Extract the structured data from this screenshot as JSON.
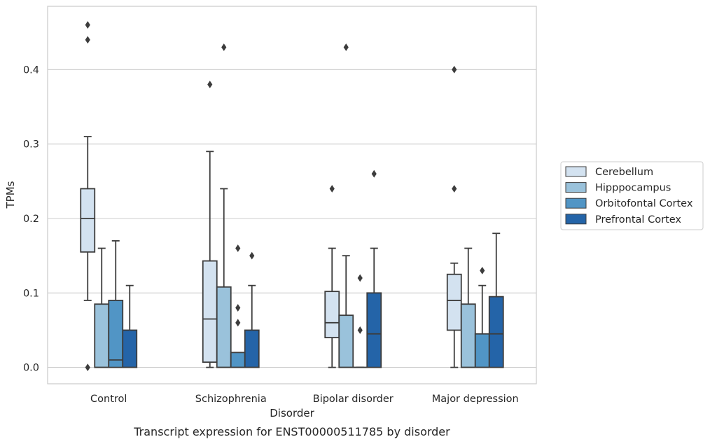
{
  "chart_data": {
    "type": "box",
    "caption": "Transcript expression for ENST00000511785 by disorder",
    "xlabel": "Disorder",
    "ylabel": "TPMs",
    "ylim": [
      -0.022,
      0.485
    ],
    "yticks": [
      "0.0",
      "0.1",
      "0.2",
      "0.3",
      "0.4"
    ],
    "grid": true,
    "legend_position": "right",
    "categories": [
      "Control",
      "Schizophrenia",
      "Bipolar disorder",
      "Major depression"
    ],
    "series": [
      {
        "name": "Cerebellum",
        "color": "#d3e2f0",
        "boxes": [
          {
            "min": 0.09,
            "q1": 0.155,
            "median": 0.2,
            "q3": 0.24,
            "max": 0.31,
            "outliers": [
              0.0,
              0.44,
              0.46
            ]
          },
          {
            "min": 0.0,
            "q1": 0.007,
            "median": 0.065,
            "q3": 0.143,
            "max": 0.29,
            "outliers": [
              0.38
            ]
          },
          {
            "min": 0.0,
            "q1": 0.04,
            "median": 0.06,
            "q3": 0.102,
            "max": 0.16,
            "outliers": [
              0.24
            ]
          },
          {
            "min": 0.0,
            "q1": 0.05,
            "median": 0.09,
            "q3": 0.125,
            "max": 0.14,
            "outliers": [
              0.24,
              0.4
            ]
          }
        ]
      },
      {
        "name": "Hipppocampus",
        "color": "#9ac2db",
        "boxes": [
          {
            "min": 0.0,
            "q1": 0.0,
            "median": 0.0,
            "q3": 0.085,
            "max": 0.16,
            "outliers": []
          },
          {
            "min": 0.0,
            "q1": 0.0,
            "median": 0.0,
            "q3": 0.108,
            "max": 0.24,
            "outliers": [
              0.43
            ]
          },
          {
            "min": 0.0,
            "q1": 0.0,
            "median": 0.0,
            "q3": 0.07,
            "max": 0.15,
            "outliers": [
              0.43
            ]
          },
          {
            "min": 0.0,
            "q1": 0.0,
            "median": 0.0,
            "q3": 0.085,
            "max": 0.16,
            "outliers": []
          }
        ]
      },
      {
        "name": "Orbitofontal Cortex",
        "color": "#5195c5",
        "boxes": [
          {
            "min": 0.0,
            "q1": 0.0,
            "median": 0.01,
            "q3": 0.09,
            "max": 0.17,
            "outliers": []
          },
          {
            "min": 0.0,
            "q1": 0.0,
            "median": 0.0,
            "q3": 0.02,
            "max": 0.02,
            "outliers": [
              0.06,
              0.08,
              0.16
            ]
          },
          {
            "min": 0.0,
            "q1": 0.0,
            "median": 0.0,
            "q3": 0.0,
            "max": 0.0,
            "outliers": [
              0.05,
              0.12
            ]
          },
          {
            "min": 0.0,
            "q1": 0.0,
            "median": 0.0,
            "q3": 0.045,
            "max": 0.11,
            "outliers": [
              0.13
            ]
          }
        ]
      },
      {
        "name": "Prefrontal Cortex",
        "color": "#2464a8",
        "boxes": [
          {
            "min": 0.0,
            "q1": 0.0,
            "median": 0.0,
            "q3": 0.05,
            "max": 0.11,
            "outliers": []
          },
          {
            "min": 0.0,
            "q1": 0.0,
            "median": 0.0,
            "q3": 0.05,
            "max": 0.11,
            "outliers": [
              0.15
            ]
          },
          {
            "min": 0.0,
            "q1": 0.0,
            "median": 0.045,
            "q3": 0.1,
            "max": 0.16,
            "outliers": [
              0.26
            ]
          },
          {
            "min": 0.0,
            "q1": 0.0,
            "median": 0.045,
            "q3": 0.095,
            "max": 0.18,
            "outliers": []
          }
        ]
      }
    ]
  }
}
